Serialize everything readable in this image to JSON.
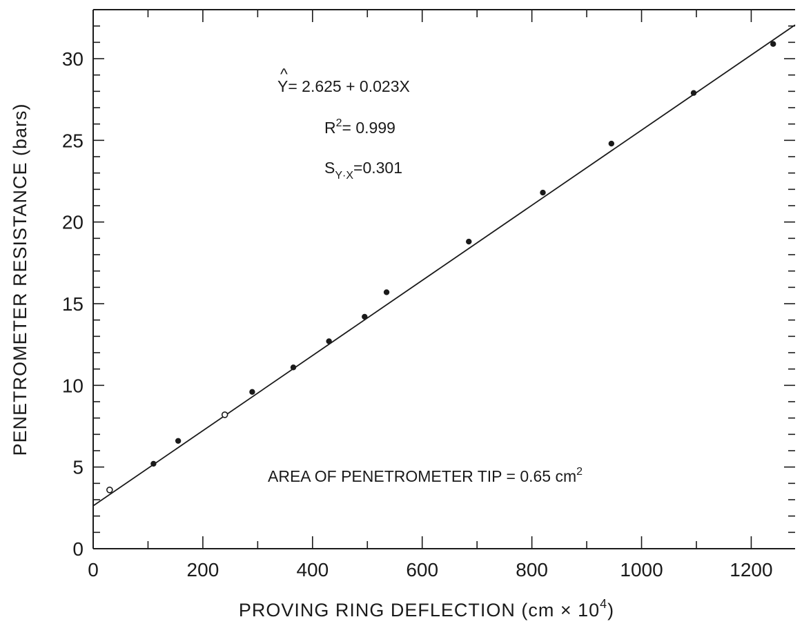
{
  "chart_data": {
    "type": "scatter",
    "xlabel": "PROVING   RING   DEFLECTION  (cm × 10",
    "xlabel_exp": "4",
    "xlabel_close": ")",
    "ylabel": "PENETROMETER    RESISTANCE    (bars)",
    "xlim": [
      0,
      1280
    ],
    "ylim": [
      0,
      33
    ],
    "x_ticks": [
      0,
      200,
      400,
      600,
      800,
      1000,
      1200
    ],
    "y_ticks": [
      0,
      5,
      10,
      15,
      20,
      25,
      30
    ],
    "grid": false,
    "points": [
      {
        "x": 30,
        "y": 3.6,
        "style": "open"
      },
      {
        "x": 110,
        "y": 5.2,
        "style": "filled"
      },
      {
        "x": 155,
        "y": 6.6,
        "style": "filled"
      },
      {
        "x": 240,
        "y": 8.2,
        "style": "open"
      },
      {
        "x": 290,
        "y": 9.6,
        "style": "filled"
      },
      {
        "x": 365,
        "y": 11.1,
        "style": "filled"
      },
      {
        "x": 430,
        "y": 12.7,
        "style": "filled"
      },
      {
        "x": 495,
        "y": 14.2,
        "style": "filled"
      },
      {
        "x": 535,
        "y": 15.7,
        "style": "filled"
      },
      {
        "x": 685,
        "y": 18.8,
        "style": "filled"
      },
      {
        "x": 820,
        "y": 21.8,
        "style": "filled"
      },
      {
        "x": 945,
        "y": 24.8,
        "style": "filled"
      },
      {
        "x": 1095,
        "y": 27.9,
        "style": "filled"
      },
      {
        "x": 1240,
        "y": 30.9,
        "style": "filled"
      }
    ],
    "fit_line": {
      "intercept": 2.625,
      "slope": 0.023,
      "x_range": [
        0,
        1290
      ]
    },
    "annotations": {
      "equation_hat": "^",
      "equation": "Y= 2.625  +  0.023X",
      "r2_base": "R",
      "r2_exp": "2",
      "r2_value": "= 0.999",
      "syx_base": "S",
      "syx_sub": "Y·X",
      "syx_value": "=0.301",
      "area_text": "AREA  OF  PENETROMETER  TIP = 0.65  cm",
      "area_exp": "2"
    }
  }
}
